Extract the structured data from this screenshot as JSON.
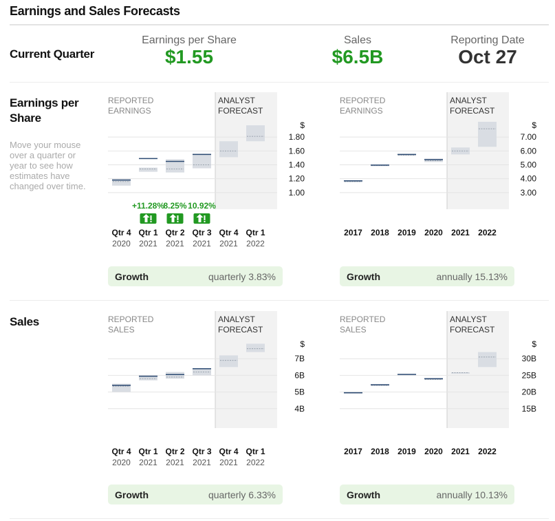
{
  "header": {
    "title": "Earnings and Sales Forecasts"
  },
  "current_quarter": {
    "label": "Current Quarter",
    "eps_label": "Earnings per Share",
    "eps_value": "$1.55",
    "sales_label": "Sales",
    "sales_value": "$6.5B",
    "date_label": "Reporting Date",
    "date_value": "Oct 27"
  },
  "eps_section": {
    "label_line1": "Earnings per",
    "label_line2": "Share",
    "help": "Move your mouse over a quarter or year to see how estimates have changed over time."
  },
  "sales_section": {
    "label": "Sales"
  },
  "colors": {
    "green": "#229922",
    "actual": "#2c4a72",
    "band": "#d9dde3",
    "forecast_bg": "#f2f2f2",
    "growth_bg": "#e8f5e4"
  },
  "chart_data": [
    {
      "type": "range-bar",
      "id": "eps_quarterly",
      "reported_title": [
        "REPORTED",
        "EARNINGS"
      ],
      "forecast_title": [
        "ANALYST",
        "FORECAST"
      ],
      "unit": "$",
      "yticks": [
        "1.80",
        "1.60",
        "1.40",
        "1.20",
        "1.00"
      ],
      "ylim": [
        0.8,
        2.0
      ],
      "categories": [
        [
          "Qtr 4",
          "2020"
        ],
        [
          "Qtr 1",
          "2021"
        ],
        [
          "Qtr 2",
          "2021"
        ],
        [
          "Qtr 3",
          "2021"
        ],
        [
          "Qtr 4",
          "2021"
        ],
        [
          "Qtr 1",
          "2022"
        ]
      ],
      "forecast_start": 4,
      "actual": [
        1.18,
        1.49,
        1.45,
        1.55,
        null,
        null
      ],
      "estimate": [
        1.16,
        1.34,
        1.34,
        1.4,
        1.6,
        1.81
      ],
      "range_low": [
        1.1,
        1.3,
        1.29,
        1.35,
        1.51,
        1.74
      ],
      "range_high": [
        1.2,
        1.36,
        1.48,
        1.56,
        1.74,
        1.97
      ],
      "surprises": [
        "",
        "+11.28%",
        "8.25%",
        "10.92%",
        "",
        ""
      ],
      "surprise_flags": [
        false,
        true,
        true,
        true,
        false,
        false
      ],
      "growth_label": "Growth",
      "growth_value": "quarterly 3.83%"
    },
    {
      "type": "range-bar",
      "id": "eps_annual",
      "reported_title": [
        "REPORTED",
        "EARNINGS"
      ],
      "forecast_title": [
        "ANALYST",
        "FORECAST"
      ],
      "unit": "$",
      "yticks": [
        "7.00",
        "6.00",
        "5.00",
        "4.00",
        "3.00"
      ],
      "ylim": [
        2.0,
        8.0
      ],
      "categories": [
        [
          "2017"
        ],
        [
          "2018"
        ],
        [
          "2019"
        ],
        [
          "2020"
        ],
        [
          "2021"
        ],
        [
          "2022"
        ]
      ],
      "forecast_start": 4,
      "actual": [
        3.85,
        4.98,
        5.75,
        5.38,
        null,
        null
      ],
      "estimate": [
        3.8,
        4.95,
        5.7,
        5.3,
        6.0,
        7.6
      ],
      "range_low": [
        3.8,
        4.95,
        5.7,
        5.2,
        5.75,
        6.3
      ],
      "range_high": [
        3.85,
        5.0,
        5.75,
        5.45,
        6.25,
        8.1
      ],
      "growth_label": "Growth",
      "growth_value": "annually 15.13%"
    },
    {
      "type": "range-bar",
      "id": "sales_quarterly",
      "reported_title": [
        "REPORTED",
        "SALES"
      ],
      "forecast_title": [
        "ANALYST",
        "FORECAST"
      ],
      "unit": "$",
      "yticks": [
        "7B",
        "6B",
        "5B",
        "4B"
      ],
      "ylim": [
        3.0,
        8.0
      ],
      "categories": [
        [
          "Qtr 4",
          "2020"
        ],
        [
          "Qtr 1",
          "2021"
        ],
        [
          "Qtr 2",
          "2021"
        ],
        [
          "Qtr 3",
          "2021"
        ],
        [
          "Qtr 4",
          "2021"
        ],
        [
          "Qtr 1",
          "2022"
        ]
      ],
      "forecast_start": 4,
      "actual": [
        5.4,
        5.95,
        6.05,
        6.4,
        null,
        null
      ],
      "estimate": [
        5.35,
        5.8,
        5.9,
        6.2,
        6.9,
        7.6
      ],
      "range_low": [
        5.0,
        5.7,
        5.8,
        6.0,
        6.5,
        7.4
      ],
      "range_high": [
        5.5,
        6.0,
        6.2,
        6.4,
        7.2,
        7.9
      ],
      "growth_label": "Growth",
      "growth_value": "quarterly 6.33%"
    },
    {
      "type": "range-bar",
      "id": "sales_annual",
      "reported_title": [
        "REPORTED",
        "SALES"
      ],
      "forecast_title": [
        "ANALYST",
        "FORECAST"
      ],
      "unit": "$",
      "yticks": [
        "30B",
        "25B",
        "20B",
        "15B"
      ],
      "ylim": [
        10,
        35
      ],
      "categories": [
        [
          "2017"
        ],
        [
          "2018"
        ],
        [
          "2019"
        ],
        [
          "2020"
        ],
        [
          "2021"
        ],
        [
          "2022"
        ]
      ],
      "forecast_start": 4,
      "actual": [
        19.8,
        22.2,
        25.3,
        24.0,
        null,
        null
      ],
      "estimate": [
        19.8,
        22.0,
        25.3,
        23.8,
        25.8,
        30.5
      ],
      "range_low": [
        19.6,
        21.8,
        25.1,
        23.6,
        25.6,
        27.5
      ],
      "range_high": [
        19.9,
        22.3,
        25.4,
        24.1,
        25.9,
        32.0
      ],
      "growth_label": "Growth",
      "growth_value": "annually 10.13%"
    }
  ]
}
